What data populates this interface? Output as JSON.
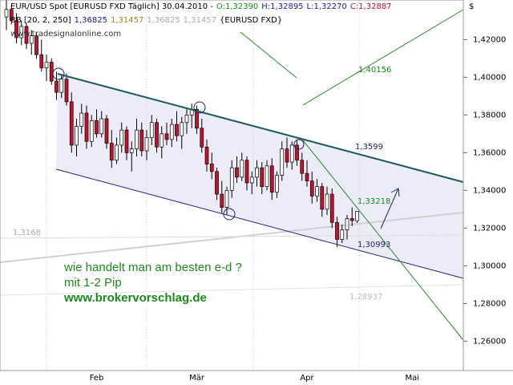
{
  "chart_data": {
    "type": "candlestick",
    "header": {
      "symbol": "EUR/USD Spot [EURUSD FXD  Täglich] 30.04.2010 -",
      "open": "O:1,32390",
      "high": "H:1,32895",
      "low": "L:1,32270",
      "close": "C:1,32887",
      "indicator": "BB [20, 2, 250]",
      "bb_values": [
        "1,36825",
        "1,31457",
        "1,36825",
        "1,31457"
      ],
      "bb_symbol": "{EURUSD FXD}",
      "source": "www.tradesignalonline.com"
    },
    "y_unit": "$",
    "ylim": [
      1.2444,
      1.441
    ],
    "yticks": [
      {
        "value": 1.26,
        "label": "1,26000"
      },
      {
        "value": 1.28,
        "label": "1,28000"
      },
      {
        "value": 1.3,
        "label": "1,30000"
      },
      {
        "value": 1.32,
        "label": "1,32000"
      },
      {
        "value": 1.34,
        "label": "1,34000"
      },
      {
        "value": 1.36,
        "label": "1,36000"
      },
      {
        "value": 1.38,
        "label": "1,38000"
      },
      {
        "value": 1.4,
        "label": "1,40000"
      },
      {
        "value": 1.42,
        "label": "1,42000"
      }
    ],
    "up_color": "#ffffff",
    "down_color": "#c8102e",
    "categories": [
      null,
      null,
      null,
      null,
      null,
      null,
      null,
      null,
      null,
      null,
      null,
      null,
      null,
      null,
      null,
      null,
      null,
      null,
      "Feb",
      null,
      null,
      null,
      null,
      null,
      null,
      null,
      null,
      null,
      null,
      null,
      null,
      null,
      null,
      null,
      null,
      null,
      null,
      null,
      "Mär",
      null,
      null,
      null,
      null,
      null,
      null,
      null,
      null,
      null,
      null,
      null,
      null,
      null,
      null,
      null,
      null,
      null,
      null,
      null,
      null,
      null,
      "Apr",
      null,
      null,
      null,
      null,
      null,
      null,
      null,
      null,
      null,
      null,
      null,
      null,
      null,
      null,
      null,
      null,
      null,
      null,
      null,
      null,
      "Mai",
      null,
      null,
      null,
      null,
      null,
      null,
      null,
      null,
      null,
      null
    ],
    "ohlc": [
      [
        1.432,
        1.441,
        1.425,
        1.436
      ],
      [
        1.436,
        1.438,
        1.428,
        1.43
      ],
      [
        1.43,
        1.434,
        1.418,
        1.421
      ],
      [
        1.421,
        1.43,
        1.417,
        1.427
      ],
      [
        1.427,
        1.429,
        1.415,
        1.418
      ],
      [
        1.418,
        1.425,
        1.412,
        1.422
      ],
      [
        1.422,
        1.424,
        1.41,
        1.412
      ],
      [
        1.412,
        1.42,
        1.403,
        1.405
      ],
      [
        1.405,
        1.412,
        1.398,
        1.408
      ],
      [
        1.408,
        1.41,
        1.396,
        1.398
      ],
      [
        1.398,
        1.403,
        1.388,
        1.392
      ],
      [
        1.392,
        1.401,
        1.389,
        1.399
      ],
      [
        1.399,
        1.402,
        1.385,
        1.387
      ],
      [
        1.387,
        1.392,
        1.36,
        1.364
      ],
      [
        1.364,
        1.378,
        1.358,
        1.374
      ],
      [
        1.374,
        1.386,
        1.37,
        1.381
      ],
      [
        1.381,
        1.385,
        1.362,
        1.366
      ],
      [
        1.366,
        1.38,
        1.363,
        1.377
      ],
      [
        1.377,
        1.383,
        1.368,
        1.37
      ],
      [
        1.37,
        1.382,
        1.368,
        1.378
      ],
      [
        1.378,
        1.38,
        1.362,
        1.365
      ],
      [
        1.365,
        1.372,
        1.352,
        1.356
      ],
      [
        1.356,
        1.368,
        1.354,
        1.364
      ],
      [
        1.364,
        1.376,
        1.36,
        1.372
      ],
      [
        1.372,
        1.374,
        1.356,
        1.36
      ],
      [
        1.36,
        1.366,
        1.35,
        1.362
      ],
      [
        1.362,
        1.378,
        1.358,
        1.372
      ],
      [
        1.372,
        1.376,
        1.358,
        1.361
      ],
      [
        1.361,
        1.372,
        1.356,
        1.368
      ],
      [
        1.368,
        1.38,
        1.364,
        1.376
      ],
      [
        1.376,
        1.378,
        1.36,
        1.363
      ],
      [
        1.363,
        1.374,
        1.357,
        1.37
      ],
      [
        1.37,
        1.376,
        1.364,
        1.367
      ],
      [
        1.367,
        1.378,
        1.363,
        1.375
      ],
      [
        1.375,
        1.382,
        1.366,
        1.369
      ],
      [
        1.369,
        1.379,
        1.362,
        1.376
      ],
      [
        1.376,
        1.384,
        1.37,
        1.38
      ],
      [
        1.38,
        1.386,
        1.373,
        1.383
      ],
      [
        1.383,
        1.385,
        1.37,
        1.373
      ],
      [
        1.373,
        1.378,
        1.36,
        1.363
      ],
      [
        1.363,
        1.367,
        1.35,
        1.354
      ],
      [
        1.354,
        1.36,
        1.346,
        1.35
      ],
      [
        1.35,
        1.352,
        1.335,
        1.338
      ],
      [
        1.338,
        1.345,
        1.328,
        1.331
      ],
      [
        1.331,
        1.342,
        1.327,
        1.34
      ],
      [
        1.34,
        1.356,
        1.336,
        1.352
      ],
      [
        1.352,
        1.358,
        1.344,
        1.347
      ],
      [
        1.347,
        1.36,
        1.345,
        1.356
      ],
      [
        1.356,
        1.358,
        1.34,
        1.344
      ],
      [
        1.344,
        1.35,
        1.338,
        1.347
      ],
      [
        1.347,
        1.356,
        1.342,
        1.352
      ],
      [
        1.352,
        1.355,
        1.338,
        1.342
      ],
      [
        1.342,
        1.356,
        1.34,
        1.353
      ],
      [
        1.353,
        1.357,
        1.335,
        1.339
      ],
      [
        1.339,
        1.35,
        1.336,
        1.348
      ],
      [
        1.348,
        1.366,
        1.345,
        1.362
      ],
      [
        1.362,
        1.368,
        1.352,
        1.355
      ],
      [
        1.355,
        1.366,
        1.351,
        1.364
      ],
      [
        1.364,
        1.367,
        1.353,
        1.356
      ],
      [
        1.356,
        1.36,
        1.345,
        1.349
      ],
      [
        1.349,
        1.356,
        1.342,
        1.345
      ],
      [
        1.345,
        1.35,
        1.333,
        1.337
      ],
      [
        1.337,
        1.346,
        1.334,
        1.342
      ],
      [
        1.342,
        1.344,
        1.326,
        1.33
      ],
      [
        1.33,
        1.342,
        1.327,
        1.338
      ],
      [
        1.338,
        1.341,
        1.32,
        1.323
      ],
      [
        1.323,
        1.326,
        1.31,
        1.314
      ],
      [
        1.314,
        1.322,
        1.312,
        1.319
      ],
      [
        1.319,
        1.327,
        1.314,
        1.325
      ],
      [
        1.325,
        1.331,
        1.321,
        1.324
      ],
      [
        1.3239,
        1.32895,
        1.3227,
        1.32887
      ],
      null,
      null,
      null,
      null,
      null,
      null,
      null,
      null,
      null,
      null,
      null,
      null,
      null,
      null,
      null,
      null,
      null,
      null,
      null,
      null,
      null
    ],
    "annotations": [
      "1,40156",
      "1,3599",
      "1,33218",
      "1,30993",
      "1,3168",
      "1,28937"
    ],
    "comment": [
      "wie handelt man am besten e-d ?",
      "mit 1-2 Pip",
      "www.brokervorschlag.de"
    ]
  }
}
